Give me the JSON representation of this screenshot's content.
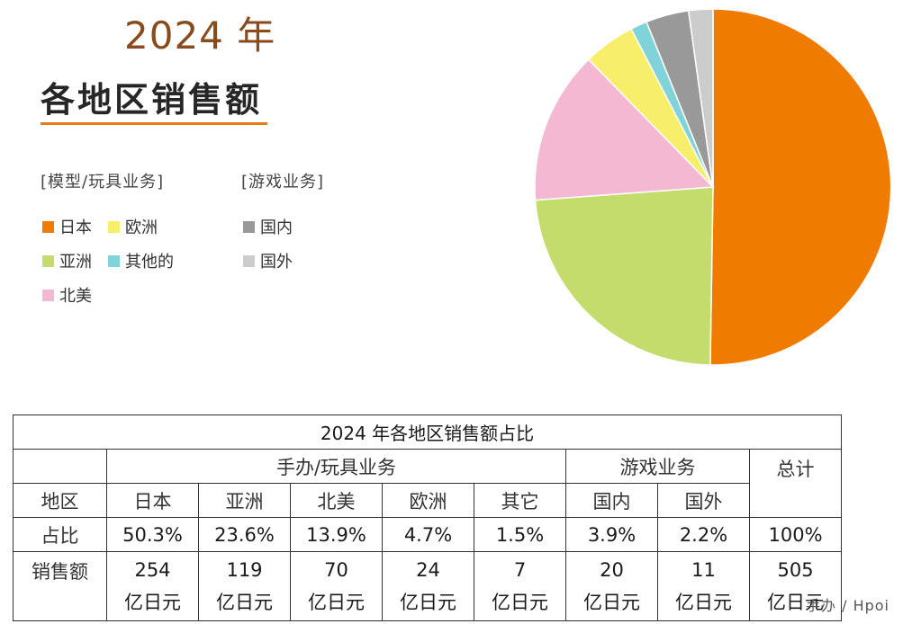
{
  "heading": {
    "year": "2024 年",
    "title": "各地区销售额"
  },
  "legend": {
    "group_toys": "[模型/玩具业务]",
    "group_games": "[游戏业务]",
    "items": [
      {
        "label": "日本",
        "color": "#ef7b00"
      },
      {
        "label": "欧洲",
        "color": "#f7ee6a"
      },
      {
        "label": "亚洲",
        "color": "#c3dc6c"
      },
      {
        "label": "其他的",
        "color": "#7fd3d9"
      },
      {
        "label": "北美",
        "color": "#f5b8d2"
      },
      {
        "label": "国内",
        "color": "#999999"
      },
      {
        "label": "国外",
        "color": "#cccccc"
      }
    ]
  },
  "chart_data": {
    "type": "pie",
    "title": "",
    "slices": [
      {
        "label": "日本",
        "value": 50.3,
        "color": "#ef7b00"
      },
      {
        "label": "亚洲",
        "value": 23.6,
        "color": "#c3dc6c"
      },
      {
        "label": "北美",
        "value": 13.9,
        "color": "#f5b8d2"
      },
      {
        "label": "欧洲",
        "value": 4.7,
        "color": "#f7ee6a"
      },
      {
        "label": "其他的",
        "value": 1.5,
        "color": "#7fd3d9"
      },
      {
        "label": "国内",
        "value": 3.9,
        "color": "#999999"
      },
      {
        "label": "国外",
        "value": 2.2,
        "color": "#cccccc"
      }
    ],
    "direction": "clockwise-from-top"
  },
  "table": {
    "caption": "2024 年各地区销售额占比",
    "group_toys": "手办/玩具业务",
    "group_games": "游戏业务",
    "total_label": "总计",
    "region_label": "地区",
    "share_label": "占比",
    "sales_label": "销售额",
    "unit": "亿日元",
    "columns": [
      {
        "region": "日本",
        "share": "50.3%",
        "sales": "254"
      },
      {
        "region": "亚洲",
        "share": "23.6%",
        "sales": "119"
      },
      {
        "region": "北美",
        "share": "13.9%",
        "sales": "70"
      },
      {
        "region": "欧洲",
        "share": "4.7%",
        "sales": "24"
      },
      {
        "region": "其它",
        "share": "1.5%",
        "sales": "7"
      },
      {
        "region": "国内",
        "share": "3.9%",
        "sales": "20"
      },
      {
        "region": "国外",
        "share": "2.2%",
        "sales": "11"
      }
    ],
    "total": {
      "share": "100%",
      "sales": "505"
    }
  },
  "watermark": "手办 / Hpoi"
}
